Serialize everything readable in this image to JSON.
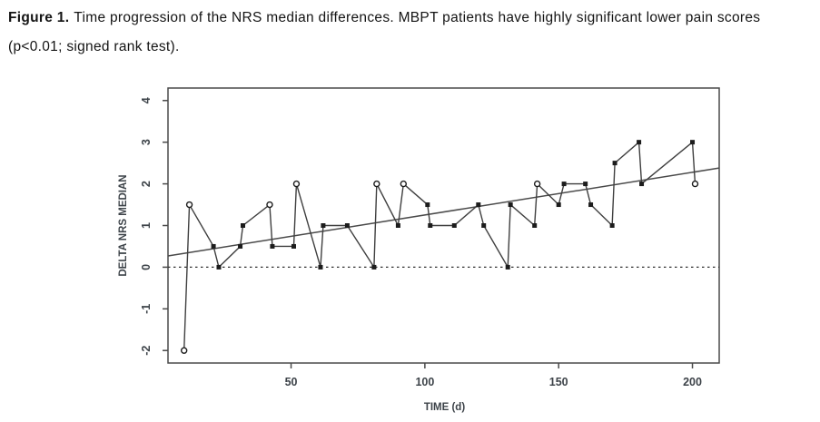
{
  "caption": {
    "figure_label": "Figure 1.",
    "line1_rest": "Time progression of the NRS median differences. MBPT patients have highly significant lower pain scores",
    "line2": "(p<0.01; signed rank test)."
  },
  "chart_data": {
    "type": "line",
    "title": "",
    "xlabel": "TIME (d)",
    "ylabel": "DELTA NRS MEDIAN",
    "xlim": [
      4,
      210
    ],
    "ylim": [
      -2.3,
      4.3
    ],
    "xticks": [
      50,
      100,
      150,
      200
    ],
    "yticks": [
      -2,
      -1,
      0,
      1,
      2,
      3,
      4
    ],
    "grid": false,
    "legend": "none",
    "zero_reference_line": {
      "y": 0,
      "style": "dotted"
    },
    "trend_line": {
      "x1": 4,
      "y1": 0.27,
      "x2": 210,
      "y2": 2.38
    },
    "series": [
      {
        "name": "NRS median difference",
        "points": [
          {
            "x": 10,
            "y": -2,
            "marker": "circle"
          },
          {
            "x": 12,
            "y": 1.5,
            "marker": "circle"
          },
          {
            "x": 21,
            "y": 0.5,
            "marker": "square"
          },
          {
            "x": 23,
            "y": 0,
            "marker": "square"
          },
          {
            "x": 31,
            "y": 0.5,
            "marker": "square"
          },
          {
            "x": 32,
            "y": 1,
            "marker": "square"
          },
          {
            "x": 42,
            "y": 1.5,
            "marker": "circle"
          },
          {
            "x": 43,
            "y": 0.5,
            "marker": "square"
          },
          {
            "x": 51,
            "y": 0.5,
            "marker": "square"
          },
          {
            "x": 52,
            "y": 2,
            "marker": "circle"
          },
          {
            "x": 61,
            "y": 0,
            "marker": "square"
          },
          {
            "x": 62,
            "y": 1,
            "marker": "square"
          },
          {
            "x": 71,
            "y": 1,
            "marker": "square"
          },
          {
            "x": 81,
            "y": 0,
            "marker": "square"
          },
          {
            "x": 82,
            "y": 2,
            "marker": "circle"
          },
          {
            "x": 90,
            "y": 1,
            "marker": "square"
          },
          {
            "x": 92,
            "y": 2,
            "marker": "circle"
          },
          {
            "x": 101,
            "y": 1.5,
            "marker": "square"
          },
          {
            "x": 102,
            "y": 1,
            "marker": "square"
          },
          {
            "x": 111,
            "y": 1,
            "marker": "square"
          },
          {
            "x": 120,
            "y": 1.5,
            "marker": "square"
          },
          {
            "x": 122,
            "y": 1,
            "marker": "square"
          },
          {
            "x": 131,
            "y": 0,
            "marker": "square"
          },
          {
            "x": 132,
            "y": 1.5,
            "marker": "square"
          },
          {
            "x": 141,
            "y": 1,
            "marker": "square"
          },
          {
            "x": 142,
            "y": 2,
            "marker": "circle"
          },
          {
            "x": 150,
            "y": 1.5,
            "marker": "square"
          },
          {
            "x": 152,
            "y": 2,
            "marker": "square"
          },
          {
            "x": 160,
            "y": 2,
            "marker": "square"
          },
          {
            "x": 162,
            "y": 1.5,
            "marker": "square"
          },
          {
            "x": 170,
            "y": 1,
            "marker": "square"
          },
          {
            "x": 171,
            "y": 2.5,
            "marker": "square"
          },
          {
            "x": 180,
            "y": 3,
            "marker": "square"
          },
          {
            "x": 181,
            "y": 2,
            "marker": "square"
          },
          {
            "x": 200,
            "y": 3,
            "marker": "square"
          },
          {
            "x": 201,
            "y": 2,
            "marker": "circle"
          }
        ]
      }
    ],
    "colors": {
      "line": "#3f3f3f",
      "marker": "#1c1c1c",
      "axis": "#4a4a4a",
      "tick_label": "#3d4349",
      "trend": "#4a4a4a",
      "zero_line": "#333333"
    }
  }
}
